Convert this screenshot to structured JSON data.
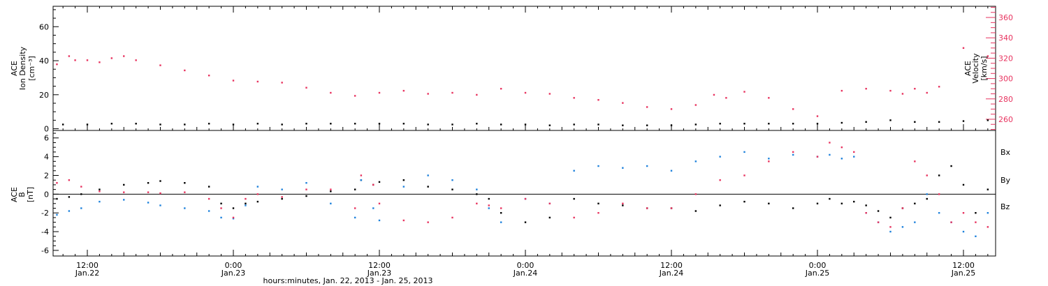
{
  "chart_data": [
    {
      "type": "scatter",
      "panel": "top",
      "ylabel_left": [
        "ACE",
        "Ion Density",
        "[cm⁻³]"
      ],
      "ylabel_right": [
        "ACE",
        "Velocity",
        "[km/s]"
      ],
      "ylim_left": [
        -1,
        72
      ],
      "yticks_left": [
        "0",
        "20",
        "40",
        "60"
      ],
      "ylim_right": [
        249,
        371
      ],
      "yticks_right": [
        "260",
        "280",
        "300",
        "320",
        "340",
        "360"
      ],
      "xlim_hours_since_jan22": [
        8.5,
        31.0
      ],
      "series": [
        {
          "color": "#000000",
          "axis": "left",
          "x": [
            8.5,
            10,
            12,
            14,
            16,
            18,
            20,
            22,
            24,
            26,
            28,
            30,
            32,
            34,
            36,
            38,
            40,
            42,
            44,
            46,
            48,
            50,
            52,
            54,
            56,
            58,
            60,
            62,
            64,
            66,
            68,
            70,
            72,
            74,
            76,
            78,
            80,
            82,
            84,
            86,
            87.5
          ],
          "y": [
            2,
            2.5,
            2.5,
            3,
            3,
            2.5,
            2.5,
            3,
            2.5,
            3,
            2.5,
            3,
            3,
            3,
            3,
            3,
            2.5,
            2.5,
            3,
            2.5,
            2.5,
            2,
            2.5,
            2.5,
            2,
            2,
            2,
            2.5,
            3,
            3,
            3,
            3,
            3,
            3.5,
            4,
            5,
            4,
            4,
            4.5,
            5,
            5
          ]
        },
        {
          "color": "#e8335f",
          "axis": "right",
          "x": [
            8.5,
            9.5,
            10.5,
            11,
            12,
            13,
            14,
            15,
            16,
            18,
            20,
            22,
            24,
            26,
            28,
            30,
            32,
            34,
            36,
            38,
            40,
            42,
            44,
            46,
            48,
            50,
            52,
            54,
            56,
            58,
            60,
            62,
            63.5,
            64.5,
            66,
            68,
            70,
            72,
            74,
            76,
            78,
            79,
            80,
            81,
            82,
            84,
            86,
            87,
            87.5
          ],
          "y": [
            322,
            314,
            322,
            318,
            318,
            316,
            320,
            322,
            318,
            313,
            308,
            303,
            298,
            297,
            296,
            291,
            286,
            283,
            286,
            288,
            285,
            286,
            284,
            290,
            286,
            285,
            281,
            279,
            276,
            272,
            270,
            274,
            284,
            281,
            287,
            281,
            270,
            263,
            288,
            290,
            288,
            285,
            290,
            286,
            292,
            330,
            322,
            345,
            360
          ]
        }
      ]
    },
    {
      "type": "scatter",
      "panel": "bottom",
      "ylabel": [
        "ACE",
        "B",
        "[nT]"
      ],
      "ylim": [
        -6.6,
        6.8
      ],
      "yticks": [
        "-6",
        "-4",
        "-2",
        "0",
        "2",
        "4",
        "6"
      ],
      "xlim_hours_since_jan22": [
        8.5,
        31.0
      ],
      "legend": [
        "Bx",
        "By",
        "Bz"
      ],
      "series": [
        {
          "name": "Bx",
          "color": "#000000",
          "x": [
            8.5,
            9.5,
            10.5,
            11.5,
            13,
            15,
            17,
            18,
            20,
            22,
            23,
            24,
            25,
            26,
            28,
            30,
            32,
            34,
            34.5,
            35.5,
            36,
            38,
            40,
            42,
            44,
            45,
            46,
            48,
            50,
            52,
            54,
            56,
            58,
            60,
            62,
            64,
            66,
            68,
            70,
            72,
            73,
            74,
            75,
            76,
            77,
            78,
            79,
            80,
            81,
            82,
            83,
            84,
            85,
            86,
            87,
            87.5
          ],
          "y": [
            -1,
            -0.5,
            -0.3,
            0,
            0.5,
            1,
            1.2,
            1.4,
            1.2,
            0.8,
            -1,
            -1.5,
            -1,
            -0.8,
            -0.5,
            -0.2,
            0.3,
            0.5,
            1.5,
            1,
            1.3,
            1.5,
            0.8,
            0.5,
            0,
            -0.5,
            -2,
            -3,
            -2.5,
            -0.5,
            -1,
            -1.2,
            -1.5,
            -1.5,
            -1.8,
            -1.2,
            -0.8,
            -1,
            -1.5,
            -1,
            -0.5,
            -1,
            -0.8,
            -1.2,
            -1.8,
            -2.5,
            -1.5,
            -1,
            -0.5,
            2,
            3,
            1,
            -2,
            0.5,
            -2,
            -5.5
          ]
        },
        {
          "name": "By",
          "color": "#1e82dc",
          "x": [
            8.5,
            9.5,
            10.5,
            11.5,
            13,
            15,
            17,
            18,
            20,
            22,
            23,
            24,
            25,
            26,
            28,
            30,
            32,
            34,
            34.5,
            35.5,
            36,
            38,
            40,
            42,
            44,
            45,
            46,
            48,
            50,
            52,
            54,
            56,
            58,
            60,
            62,
            64,
            66,
            68,
            70,
            72,
            73,
            74,
            75,
            76,
            77,
            78,
            79,
            80,
            81,
            82,
            83,
            84,
            85,
            86,
            87,
            87.5
          ],
          "y": [
            -2.6,
            -2.2,
            -1.8,
            -1.5,
            -0.8,
            -0.6,
            -0.9,
            -1.2,
            -1.5,
            -1.8,
            -2.5,
            -2.6,
            -1.2,
            0.8,
            0.5,
            1.2,
            -1,
            -2.5,
            1.5,
            -1.5,
            -2.8,
            0.8,
            2,
            1.5,
            0.5,
            -1.5,
            -3,
            -0.5,
            -1,
            2.5,
            3,
            2.8,
            3,
            2.5,
            3.5,
            4,
            4.5,
            3.8,
            4.2,
            4,
            4.2,
            3.8,
            4,
            -2,
            -3,
            -4,
            -3.5,
            -3,
            0,
            -2,
            -3,
            -4,
            -4.5,
            -2,
            -3,
            -5
          ]
        },
        {
          "name": "Bz",
          "color": "#e8335f",
          "x": [
            8.5,
            9.5,
            10.5,
            11.5,
            13,
            15,
            17,
            18,
            20,
            22,
            23,
            24,
            25,
            26,
            28,
            30,
            32,
            34,
            34.5,
            35.5,
            36,
            38,
            40,
            42,
            44,
            45,
            46,
            48,
            50,
            52,
            54,
            56,
            58,
            60,
            62,
            64,
            66,
            68,
            70,
            72,
            73,
            74,
            75,
            76,
            77,
            78,
            79,
            80,
            81,
            82,
            83,
            84,
            85,
            86,
            87,
            87.5
          ],
          "y": [
            0.5,
            1.2,
            1.5,
            0.8,
            0.3,
            0.2,
            0.2,
            0.1,
            0.2,
            -0.5,
            -1.5,
            -2.5,
            -0.5,
            0,
            -0.3,
            0.5,
            0.5,
            -1.5,
            2,
            1,
            -1,
            -2.8,
            -3,
            -2.5,
            -1,
            -1.2,
            -1.5,
            -0.5,
            -1,
            -2.5,
            -2,
            -1,
            -1.5,
            -1.5,
            0,
            1.5,
            2,
            3.5,
            4.5,
            4,
            5.5,
            5,
            4.5,
            -2,
            -3,
            -3.5,
            -1.5,
            3.5,
            2,
            0,
            -3,
            -2,
            -3,
            -3.5,
            -4,
            -4
          ]
        }
      ]
    }
  ],
  "x_axis": {
    "ticks": [
      {
        "h": 12,
        "time": "12:00",
        "date": "Jan.22"
      },
      {
        "h": 24,
        "time": "0:00",
        "date": "Jan.23"
      },
      {
        "h": 36,
        "time": "12:00",
        "date": "Jan.23"
      },
      {
        "h": 48,
        "time": "0:00",
        "date": "Jan.24"
      },
      {
        "h": 60,
        "time": "12:00",
        "date": "Jan.24"
      },
      {
        "h": 72,
        "time": "0:00",
        "date": "Jan.25"
      },
      {
        "h": 84,
        "time": "12:00",
        "date": "Jan.25"
      }
    ],
    "label": "hours:minutes, Jan. 22, 2013 - Jan. 25, 2013"
  },
  "colors": {
    "density": "#000000",
    "velocity": "#e8335f",
    "bx": "#000000",
    "by": "#1e82dc",
    "bz": "#e8335f"
  }
}
